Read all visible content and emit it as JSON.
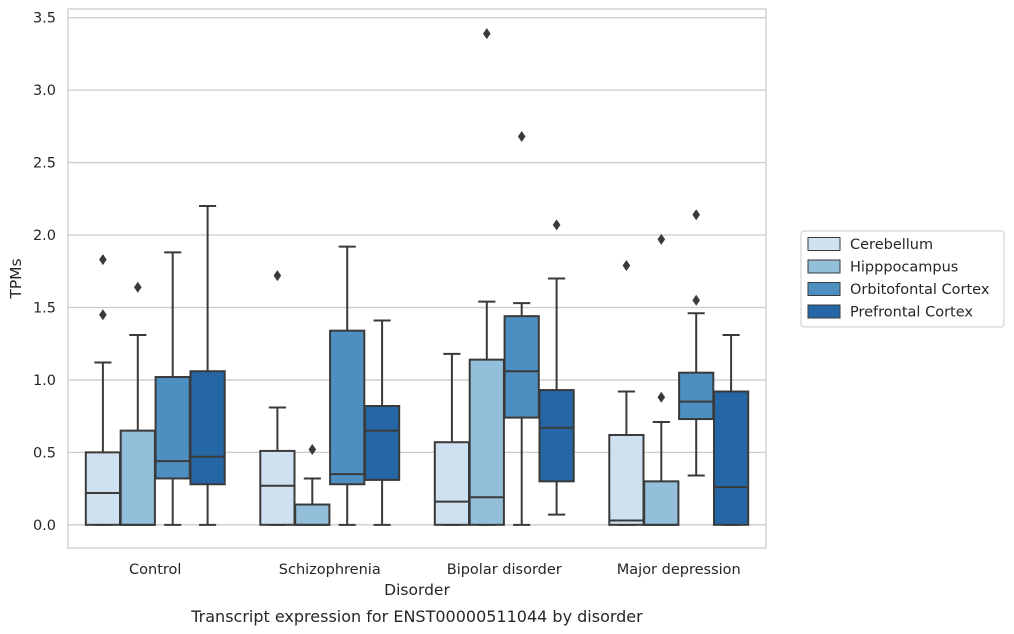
{
  "chart_data": {
    "type": "box",
    "xlabel": "Disorder",
    "ylabel": "TPMs",
    "caption": "Transcript expression for ENST00000511044 by disorder",
    "ylim": [
      -0.16,
      3.56
    ],
    "yticks": [
      "0.0",
      "0.5",
      "1.0",
      "1.5",
      "2.0",
      "2.5",
      "3.0",
      "3.5"
    ],
    "grid": true,
    "legend_position": "right",
    "categories": [
      "Control",
      "Schizophrenia",
      "Bipolar disorder",
      "Major depression"
    ],
    "series": [
      {
        "name": "Cerebellum",
        "color": "#cfe0f0",
        "boxes": [
          {
            "whisker_low": 0.0,
            "q1": 0.0,
            "median": 0.22,
            "q3": 0.5,
            "whisker_high": 1.12,
            "outliers": [
              1.45,
              1.83
            ]
          },
          {
            "whisker_low": 0.0,
            "q1": 0.0,
            "median": 0.27,
            "q3": 0.51,
            "whisker_high": 0.81,
            "outliers": [
              1.72
            ]
          },
          {
            "whisker_low": 0.0,
            "q1": 0.0,
            "median": 0.16,
            "q3": 0.57,
            "whisker_high": 1.18,
            "outliers": []
          },
          {
            "whisker_low": 0.0,
            "q1": 0.0,
            "median": 0.03,
            "q3": 0.62,
            "whisker_high": 0.92,
            "outliers": [
              1.79
            ]
          }
        ]
      },
      {
        "name": "Hipppocampus",
        "color": "#93bfdb",
        "boxes": [
          {
            "whisker_low": 0.0,
            "q1": 0.0,
            "median": 0.0,
            "q3": 0.65,
            "whisker_high": 1.31,
            "outliers": [
              1.64
            ]
          },
          {
            "whisker_low": 0.0,
            "q1": 0.0,
            "median": 0.0,
            "q3": 0.14,
            "whisker_high": 0.32,
            "outliers": [
              0.52
            ]
          },
          {
            "whisker_low": 0.0,
            "q1": 0.0,
            "median": 0.19,
            "q3": 1.14,
            "whisker_high": 1.54,
            "outliers": [
              3.39
            ]
          },
          {
            "whisker_low": 0.0,
            "q1": 0.0,
            "median": 0.0,
            "q3": 0.3,
            "whisker_high": 0.71,
            "outliers": [
              0.88,
              1.97
            ]
          }
        ]
      },
      {
        "name": "Orbitofontal Cortex",
        "color": "#4d8fc0",
        "boxes": [
          {
            "whisker_low": 0.0,
            "q1": 0.32,
            "median": 0.44,
            "q3": 1.02,
            "whisker_high": 1.88,
            "outliers": []
          },
          {
            "whisker_low": 0.0,
            "q1": 0.28,
            "median": 0.35,
            "q3": 1.34,
            "whisker_high": 1.92,
            "outliers": []
          },
          {
            "whisker_low": 0.0,
            "q1": 0.74,
            "median": 1.06,
            "q3": 1.44,
            "whisker_high": 1.53,
            "outliers": [
              2.68
            ]
          },
          {
            "whisker_low": 0.34,
            "q1": 0.73,
            "median": 0.85,
            "q3": 1.05,
            "whisker_high": 1.46,
            "outliers": [
              1.55,
              2.14
            ]
          }
        ]
      },
      {
        "name": "Prefrontal Cortex",
        "color": "#2566a5",
        "boxes": [
          {
            "whisker_low": 0.0,
            "q1": 0.28,
            "median": 0.47,
            "q3": 1.06,
            "whisker_high": 2.2,
            "outliers": []
          },
          {
            "whisker_low": 0.0,
            "q1": 0.31,
            "median": 0.65,
            "q3": 0.82,
            "whisker_high": 1.41,
            "outliers": []
          },
          {
            "whisker_low": 0.07,
            "q1": 0.3,
            "median": 0.67,
            "q3": 0.93,
            "whisker_high": 1.7,
            "outliers": [
              2.07
            ]
          },
          {
            "whisker_low": 0.0,
            "q1": 0.0,
            "median": 0.26,
            "q3": 0.92,
            "whisker_high": 1.31,
            "outliers": []
          }
        ]
      }
    ]
  }
}
